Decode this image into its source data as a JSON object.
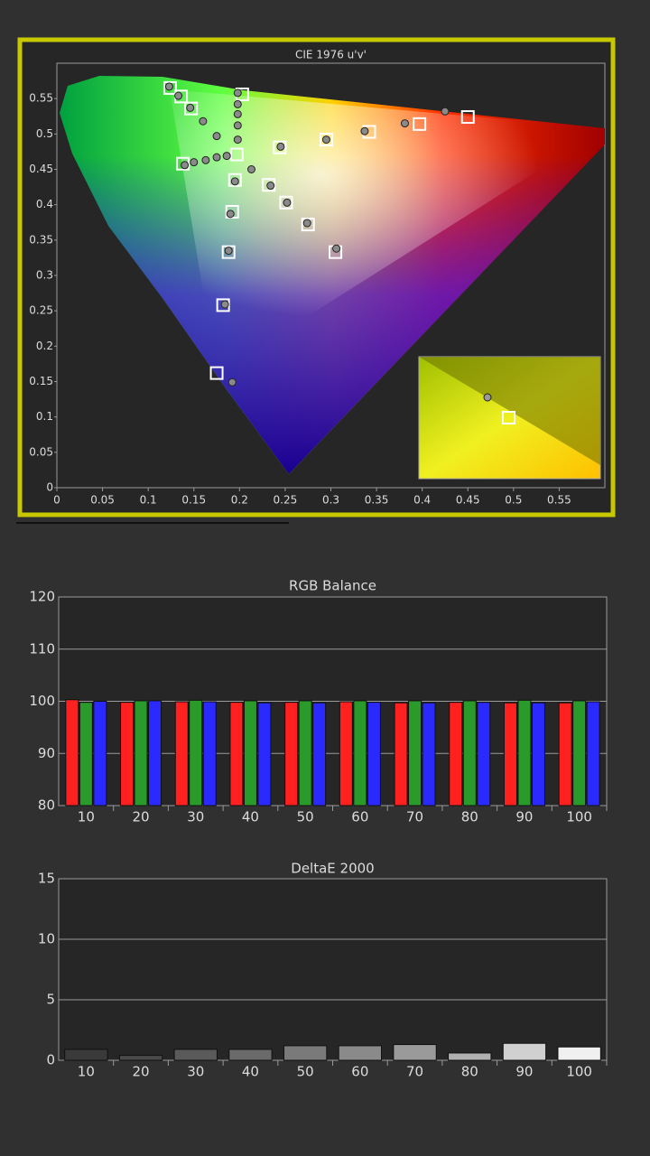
{
  "chart_data": [
    {
      "type": "scatter",
      "title": "CIE 1976 u'v'",
      "xlim": [
        0,
        0.6
      ],
      "ylim": [
        0,
        0.6
      ],
      "xticks": [
        0,
        0.05,
        0.1,
        0.15,
        0.2,
        0.25,
        0.3,
        0.35,
        0.4,
        0.45,
        0.5,
        0.55
      ],
      "yticks": [
        0,
        0.05,
        0.1,
        0.15,
        0.2,
        0.25,
        0.3,
        0.35,
        0.4,
        0.45,
        0.5,
        0.55
      ],
      "grid": false,
      "series": [
        {
          "marker": "square",
          "color": "#ffffff",
          "x": [
            0.124,
            0.136,
            0.147,
            0.203,
            0.197,
            0.138,
            0.244,
            0.295,
            0.342,
            0.397,
            0.45,
            0.195,
            0.232,
            0.251,
            0.192,
            0.275,
            0.188,
            0.305,
            0.182,
            0.175
          ],
          "y": [
            0.565,
            0.553,
            0.536,
            0.556,
            0.471,
            0.458,
            0.481,
            0.492,
            0.503,
            0.514,
            0.524,
            0.435,
            0.428,
            0.403,
            0.39,
            0.372,
            0.333,
            0.333,
            0.258,
            0.162
          ]
        },
        {
          "marker": "circle",
          "color": "#8a8a8a",
          "x": [
            0.123,
            0.133,
            0.146,
            0.16,
            0.175,
            0.186,
            0.198,
            0.198,
            0.198,
            0.198,
            0.198,
            0.14,
            0.15,
            0.163,
            0.175,
            0.213,
            0.245,
            0.295,
            0.337,
            0.381,
            0.425,
            0.195,
            0.234,
            0.252,
            0.19,
            0.274,
            0.188,
            0.306,
            0.184,
            0.192
          ],
          "y": [
            0.567,
            0.554,
            0.537,
            0.518,
            0.497,
            0.469,
            0.558,
            0.542,
            0.528,
            0.512,
            0.492,
            0.456,
            0.46,
            0.463,
            0.467,
            0.45,
            0.482,
            0.492,
            0.504,
            0.515,
            0.532,
            0.433,
            0.427,
            0.403,
            0.387,
            0.374,
            0.335,
            0.338,
            0.259,
            0.149
          ]
        }
      ]
    },
    {
      "type": "bar",
      "title": "RGB Balance",
      "categories": [
        "10",
        "20",
        "30",
        "40",
        "50",
        "60",
        "70",
        "80",
        "90",
        "100"
      ],
      "ylim": [
        80,
        120
      ],
      "yticks": [
        80,
        90,
        100,
        110,
        120
      ],
      "grid": true,
      "series": [
        {
          "color": "#ff2020",
          "values": [
            100.3,
            99.8,
            99.9,
            99.8,
            99.8,
            99.9,
            99.7,
            99.8,
            99.7,
            99.7
          ]
        },
        {
          "color": "#2a9a2a",
          "values": [
            99.8,
            100.1,
            100.2,
            100.1,
            100.1,
            100.1,
            100.1,
            100.1,
            100.2,
            100.1
          ]
        },
        {
          "color": "#2a2aff",
          "values": [
            100.0,
            100.1,
            99.9,
            99.7,
            99.7,
            99.8,
            99.7,
            99.8,
            99.7,
            99.9
          ]
        }
      ]
    },
    {
      "type": "bar",
      "title": "DeltaE 2000",
      "categories": [
        "10",
        "20",
        "30",
        "40",
        "50",
        "60",
        "70",
        "80",
        "90",
        "100"
      ],
      "ylim": [
        0,
        15
      ],
      "yticks": [
        0,
        5,
        10,
        15
      ],
      "grid": true,
      "colors": [
        "#3a3a3a",
        "#4a4a4a",
        "#5a5a5a",
        "#6a6a6a",
        "#7a7a7a",
        "#8a8a8a",
        "#9a9a9a",
        "#b0b0b0",
        "#d0d0d0",
        "#f0f0f0"
      ],
      "values": [
        0.9,
        0.4,
        0.9,
        0.9,
        1.2,
        1.2,
        1.3,
        0.6,
        1.4,
        1.1
      ]
    }
  ]
}
